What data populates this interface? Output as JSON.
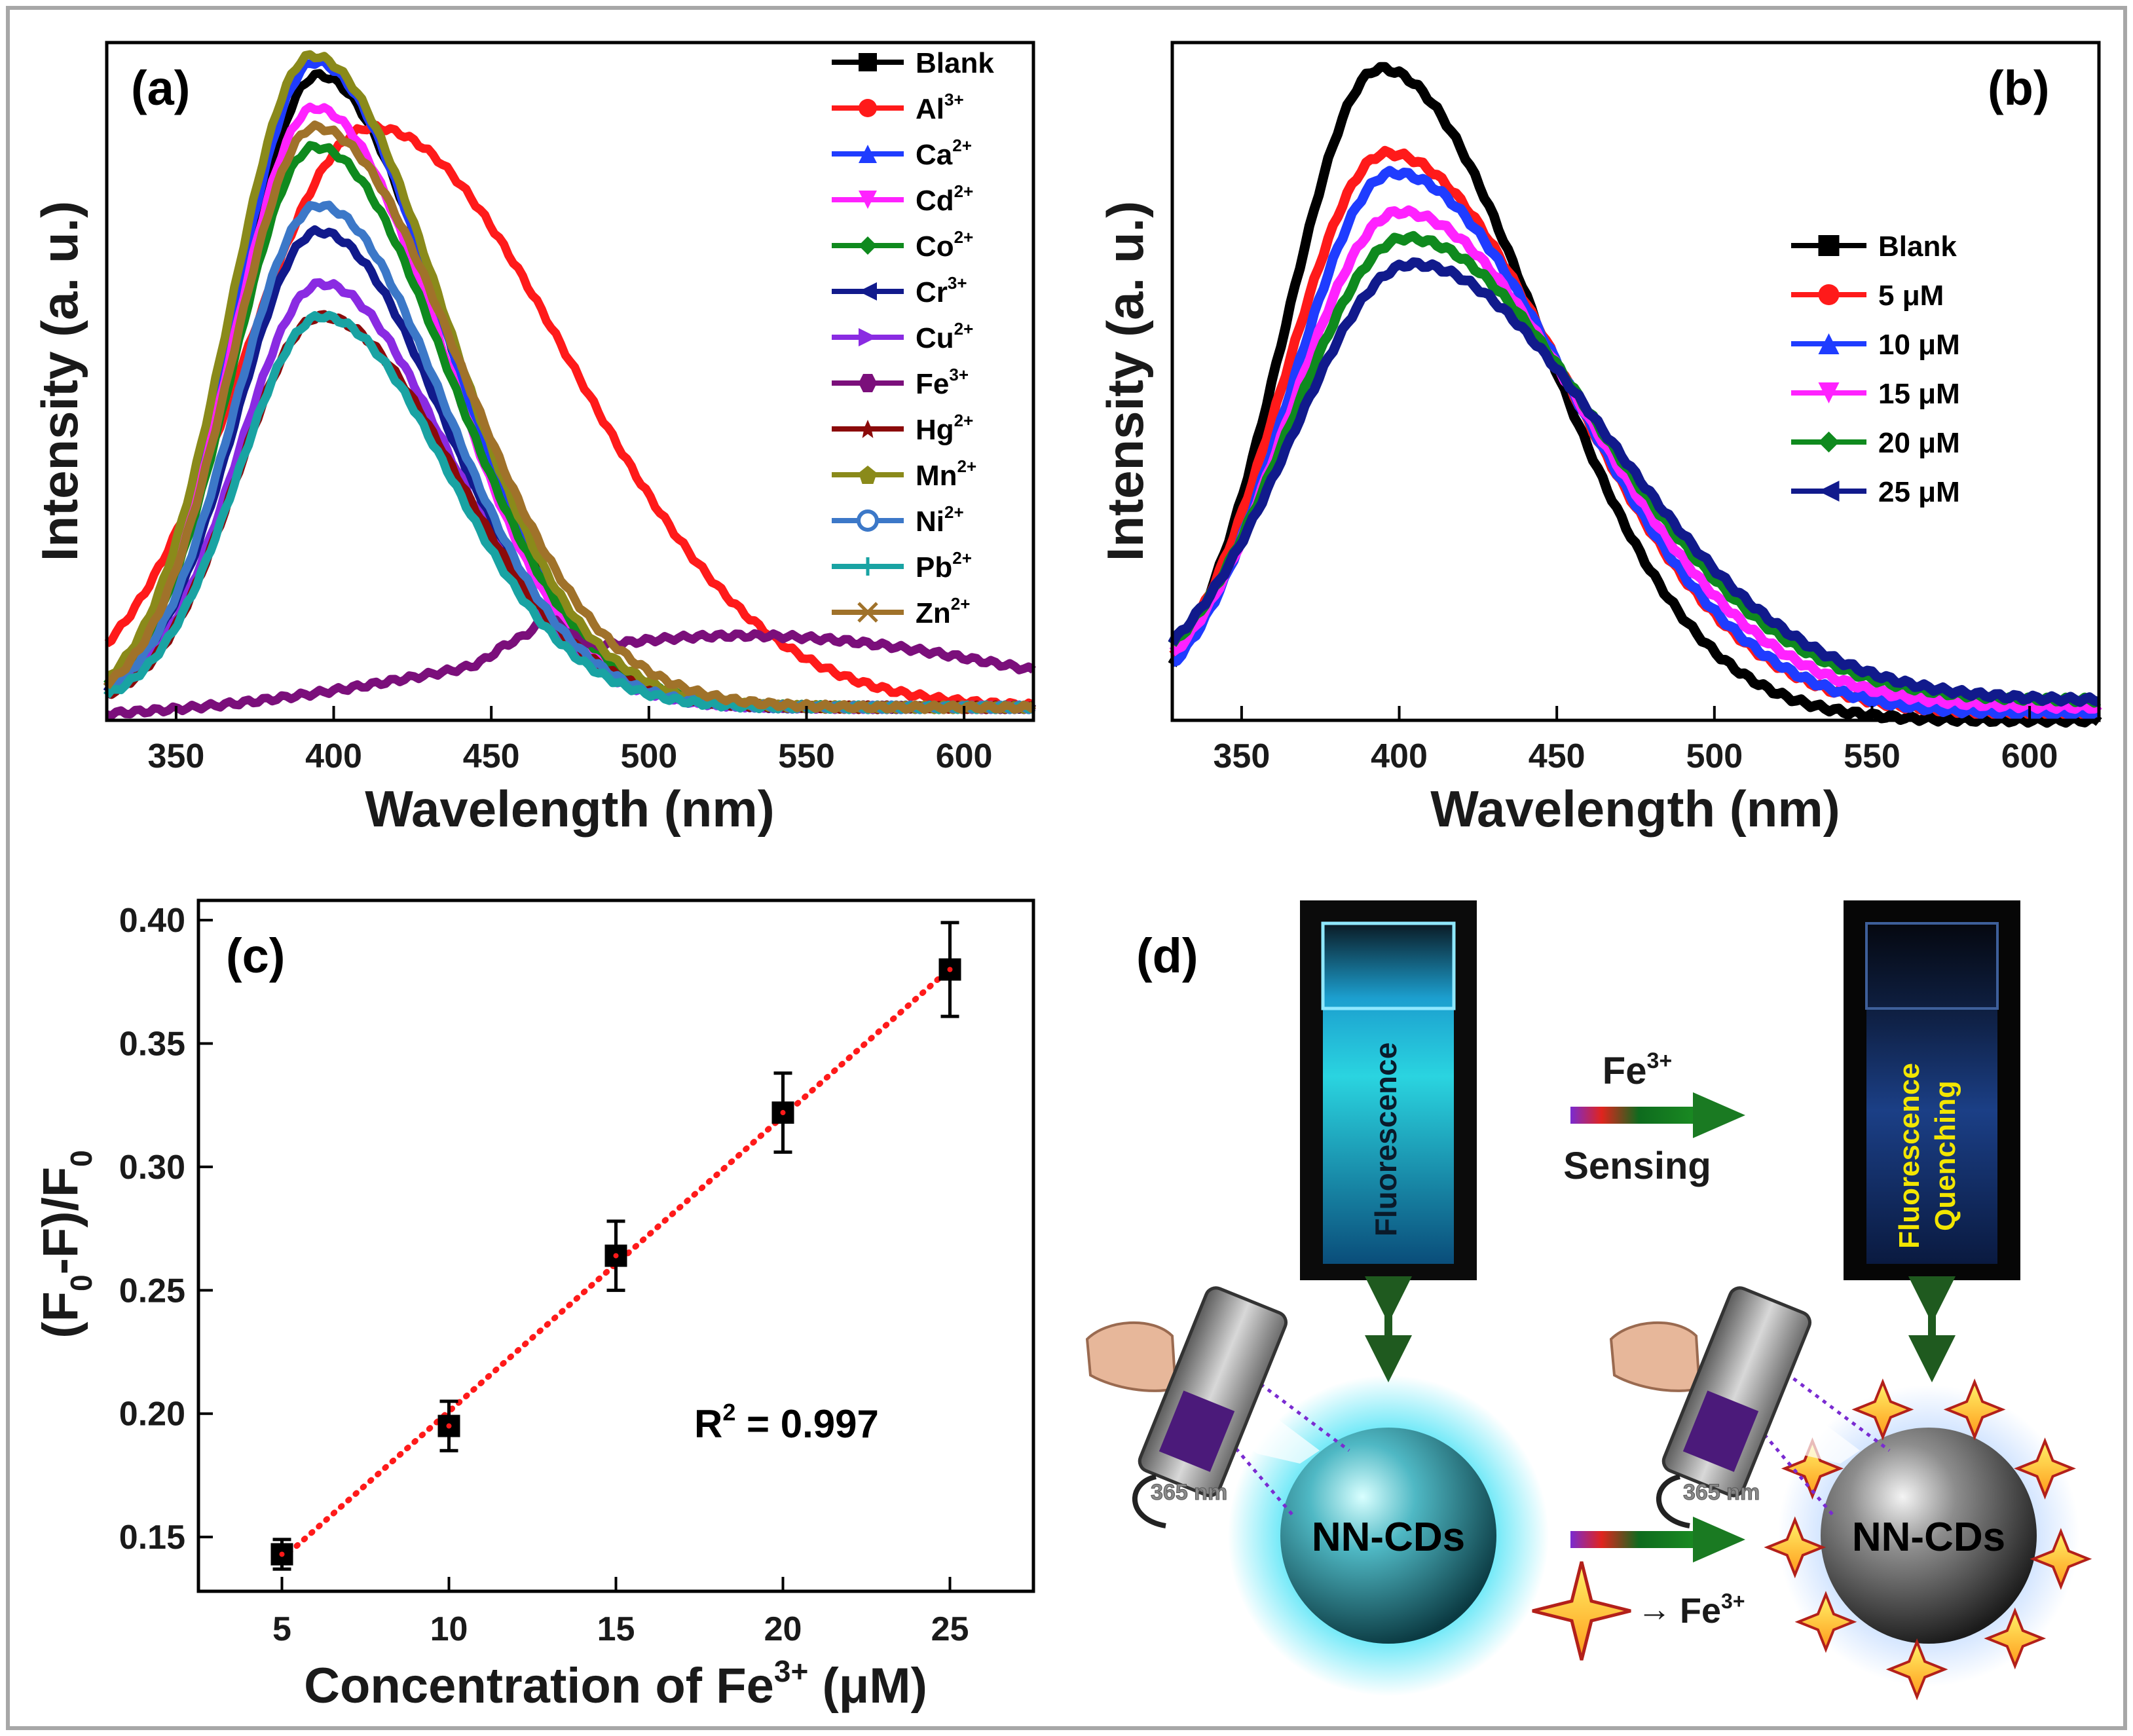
{
  "chart_data": [
    {
      "panel": "(a)",
      "type": "line",
      "xlabel": "Wavelength (nm)",
      "ylabel": "Intensity (a. u.)",
      "xlim": [
        328,
        622
      ],
      "xticks": [
        350,
        400,
        450,
        500,
        550,
        600
      ],
      "ylim": [
        0,
        1.04
      ],
      "series": [
        {
          "name": "Blank",
          "ion": "",
          "charge": "",
          "color": "#000000",
          "marker": "square",
          "peak_nm": 395,
          "amplitude": 0.97,
          "sigma_left": 26,
          "sigma_right": 40,
          "baseline": 0.02
        },
        {
          "name": "Al3+",
          "ion": "Al",
          "charge": "3+",
          "color": "#ff1a1a",
          "marker": "circle",
          "peak_nm": 412,
          "amplitude": 0.89,
          "sigma_left": 40,
          "sigma_right": 62,
          "baseline": 0.02
        },
        {
          "name": "Ca2+",
          "ion": "Ca",
          "charge": "2+",
          "color": "#1f3cff",
          "marker": "triangle-up",
          "peak_nm": 394,
          "amplitude": 0.99,
          "sigma_left": 26,
          "sigma_right": 40,
          "baseline": 0.02
        },
        {
          "name": "Cd2+",
          "ion": "Cd",
          "charge": "2+",
          "color": "#ff22ff",
          "marker": "triangle-down",
          "peak_nm": 394,
          "amplitude": 0.92,
          "sigma_left": 26,
          "sigma_right": 40,
          "baseline": 0.02
        },
        {
          "name": "Co2+",
          "ion": "Co",
          "charge": "2+",
          "color": "#0f8a1e",
          "marker": "diamond",
          "peak_nm": 394,
          "amplitude": 0.86,
          "sigma_left": 26,
          "sigma_right": 42,
          "baseline": 0.02
        },
        {
          "name": "Cr3+",
          "ion": "Cr",
          "charge": "3+",
          "color": "#111a8c",
          "marker": "triangle-left",
          "peak_nm": 395,
          "amplitude": 0.73,
          "sigma_left": 26,
          "sigma_right": 40,
          "baseline": 0.02
        },
        {
          "name": "Cu2+",
          "ion": "Cu",
          "charge": "2+",
          "color": "#8a2be2",
          "marker": "triangle-right",
          "peak_nm": 396,
          "amplitude": 0.65,
          "sigma_left": 26,
          "sigma_right": 40,
          "baseline": 0.02
        },
        {
          "name": "Fe3+",
          "ion": "Fe",
          "charge": "3+",
          "color": "#7b0f7b",
          "marker": "hexagon",
          "peak_nm": 530,
          "amplitude": 0.13,
          "sigma_left": 90,
          "sigma_right": 60,
          "baseline": 0.0
        },
        {
          "name": "Hg2+",
          "ion": "Hg",
          "charge": "2+",
          "color": "#8b0a0a",
          "marker": "star",
          "peak_nm": 396,
          "amplitude": 0.6,
          "sigma_left": 26,
          "sigma_right": 42,
          "baseline": 0.02
        },
        {
          "name": "Mn2+",
          "ion": "Mn",
          "charge": "2+",
          "color": "#8a8a1a",
          "marker": "pentagon",
          "peak_nm": 393,
          "amplitude": 1.0,
          "sigma_left": 26,
          "sigma_right": 42,
          "baseline": 0.02
        },
        {
          "name": "Ni2+",
          "ion": "Ni",
          "charge": "2+",
          "color": "#3c78c8",
          "marker": "circle-half",
          "peak_nm": 395,
          "amplitude": 0.77,
          "sigma_left": 26,
          "sigma_right": 40,
          "baseline": 0.02
        },
        {
          "name": "Pb2+",
          "ion": "Pb",
          "charge": "2+",
          "color": "#19a3a3",
          "marker": "plus",
          "peak_nm": 396,
          "amplitude": 0.6,
          "sigma_left": 26,
          "sigma_right": 40,
          "baseline": 0.02
        },
        {
          "name": "Zn2+",
          "ion": "Zn",
          "charge": "2+",
          "color": "#a0722a",
          "marker": "x",
          "peak_nm": 394,
          "amplitude": 0.89,
          "sigma_left": 26,
          "sigma_right": 45,
          "baseline": 0.02
        }
      ]
    },
    {
      "panel": "(b)",
      "type": "line",
      "xlabel": "Wavelength (nm)",
      "ylabel": "Intensity (a. u.)",
      "xlim": [
        328,
        622
      ],
      "xticks": [
        350,
        400,
        450,
        500,
        550,
        600
      ],
      "ylim": [
        0,
        1.04
      ],
      "series": [
        {
          "name": "Blank",
          "color": "#000000",
          "marker": "square",
          "peak_nm": 394,
          "amplitude": 1.0,
          "sigma_left": 30,
          "sigma_right": 50,
          "baseline": 0.0
        },
        {
          "name": "5 μM",
          "color": "#ff1a1a",
          "marker": "circle",
          "peak_nm": 396,
          "amplitude": 0.86,
          "sigma_left": 32,
          "sigma_right": 56,
          "baseline": 0.01
        },
        {
          "name": "10 μM",
          "color": "#1f3cff",
          "marker": "triangle-up",
          "peak_nm": 398,
          "amplitude": 0.83,
          "sigma_left": 32,
          "sigma_right": 56,
          "baseline": 0.01
        },
        {
          "name": "15 μM",
          "color": "#ff22ff",
          "marker": "triangle-down",
          "peak_nm": 400,
          "amplitude": 0.76,
          "sigma_left": 34,
          "sigma_right": 58,
          "baseline": 0.02
        },
        {
          "name": "20 μM",
          "color": "#0f8a1e",
          "marker": "diamond",
          "peak_nm": 402,
          "amplitude": 0.71,
          "sigma_left": 36,
          "sigma_right": 60,
          "baseline": 0.03
        },
        {
          "name": "25 μM",
          "color": "#111a8c",
          "marker": "triangle-left",
          "peak_nm": 404,
          "amplitude": 0.67,
          "sigma_left": 38,
          "sigma_right": 62,
          "baseline": 0.03
        }
      ]
    },
    {
      "panel": "(c)",
      "type": "scatter",
      "xlabel": "Concentration of Fe3+ (μM)",
      "ylabel": "(F0-F)/F0",
      "xlim": [
        2.5,
        27.5
      ],
      "ylim": [
        0.128,
        0.408
      ],
      "xticks": [
        5,
        10,
        15,
        20,
        25
      ],
      "yticks": [
        0.15,
        0.2,
        0.25,
        0.3,
        0.35,
        0.4
      ],
      "x": [
        5,
        10,
        15,
        20,
        25
      ],
      "y": [
        0.143,
        0.195,
        0.264,
        0.322,
        0.38
      ],
      "error": [
        0.006,
        0.01,
        0.014,
        0.016,
        0.019
      ],
      "fit": {
        "slope": 0.01196,
        "intercept": 0.0813,
        "color": "#ff1a1a",
        "style": "dotted"
      },
      "annotation": "R² = 0.997"
    }
  ],
  "panel_labels": {
    "a": "(a)",
    "b": "(b)",
    "c": "(c)",
    "d": "(d)"
  },
  "axis_text": {
    "wavelength": "Wavelength (nm)",
    "intensity": "Intensity (a. u.)",
    "c_ylabel_main": "(F",
    "c_ylabel_sub": "0",
    "c_ylabel_mid": "-F)/F",
    "c_ylabel_sub2": "0",
    "c_xlabel_main": "Concentration of Fe",
    "c_xlabel_sup": "3+",
    "c_xlabel_unit": " (μM)",
    "r2_main": "R",
    "r2_sup": "2",
    "r2_val": " = 0.997"
  },
  "schematic": {
    "cuvette_left": "Fluorescence",
    "cuvette_right_line1": "Fluorescence",
    "cuvette_right_line2": "Quenching",
    "arrow_top_ion": "Fe",
    "arrow_top_sup": "3+",
    "arrow_top_label": "Sensing",
    "particle_left": "NN-CDs",
    "particle_right": "NN-CDs",
    "lamp_label_left": "365 nm",
    "lamp_label_right": "365 nm",
    "legend_ion": "Fe",
    "legend_sup": "3+",
    "legend_arrow": "→"
  }
}
